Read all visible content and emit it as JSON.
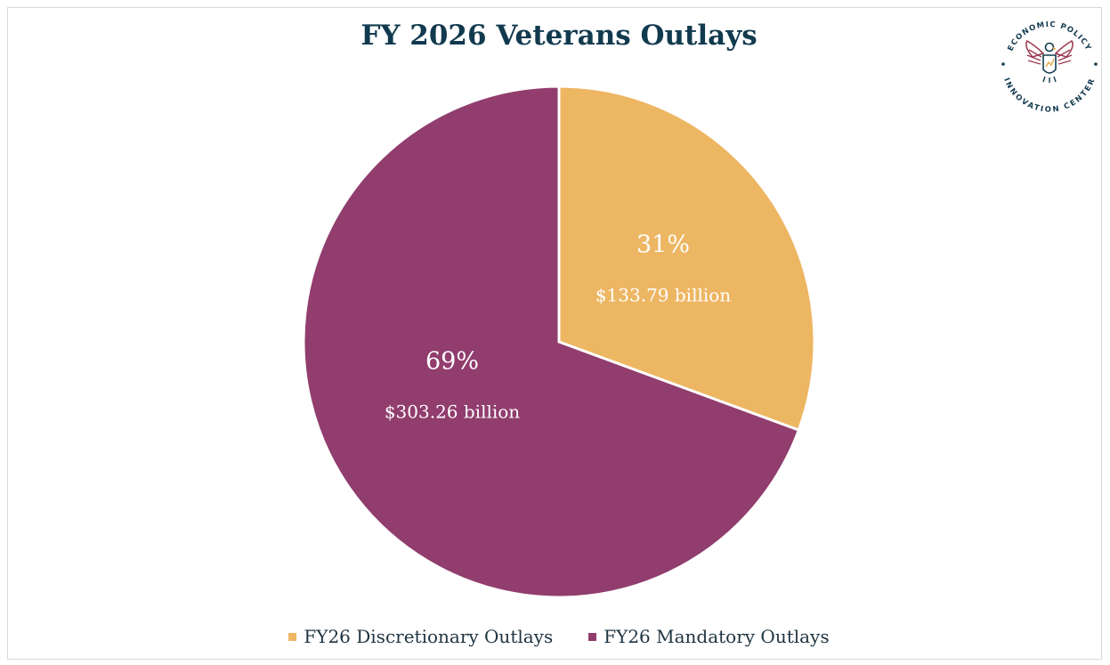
{
  "chart_data": {
    "type": "pie",
    "title": "FY 2026 Veterans Outlays",
    "slices": [
      {
        "name": "FY26 Discretionary Outlays",
        "value": 133.79,
        "percent_label": "31%",
        "value_label": "$133.79 billion",
        "color": "#edb663"
      },
      {
        "name": "FY26 Mandatory Outlays",
        "value": 303.26,
        "percent_label": "69%",
        "value_label": "$303.26 billion",
        "color": "#913d6e"
      }
    ],
    "legend_position": "bottom"
  },
  "logo": {
    "top_text": "ECONOMIC POLICY",
    "bottom_text": "INNOVATION CENTER",
    "icon": "eagle-seal-icon",
    "colors": {
      "ring": "#123a4f",
      "accent": "#9c3a4f"
    }
  },
  "colors": {
    "title": "#123a4f",
    "text": "#1f3441"
  }
}
